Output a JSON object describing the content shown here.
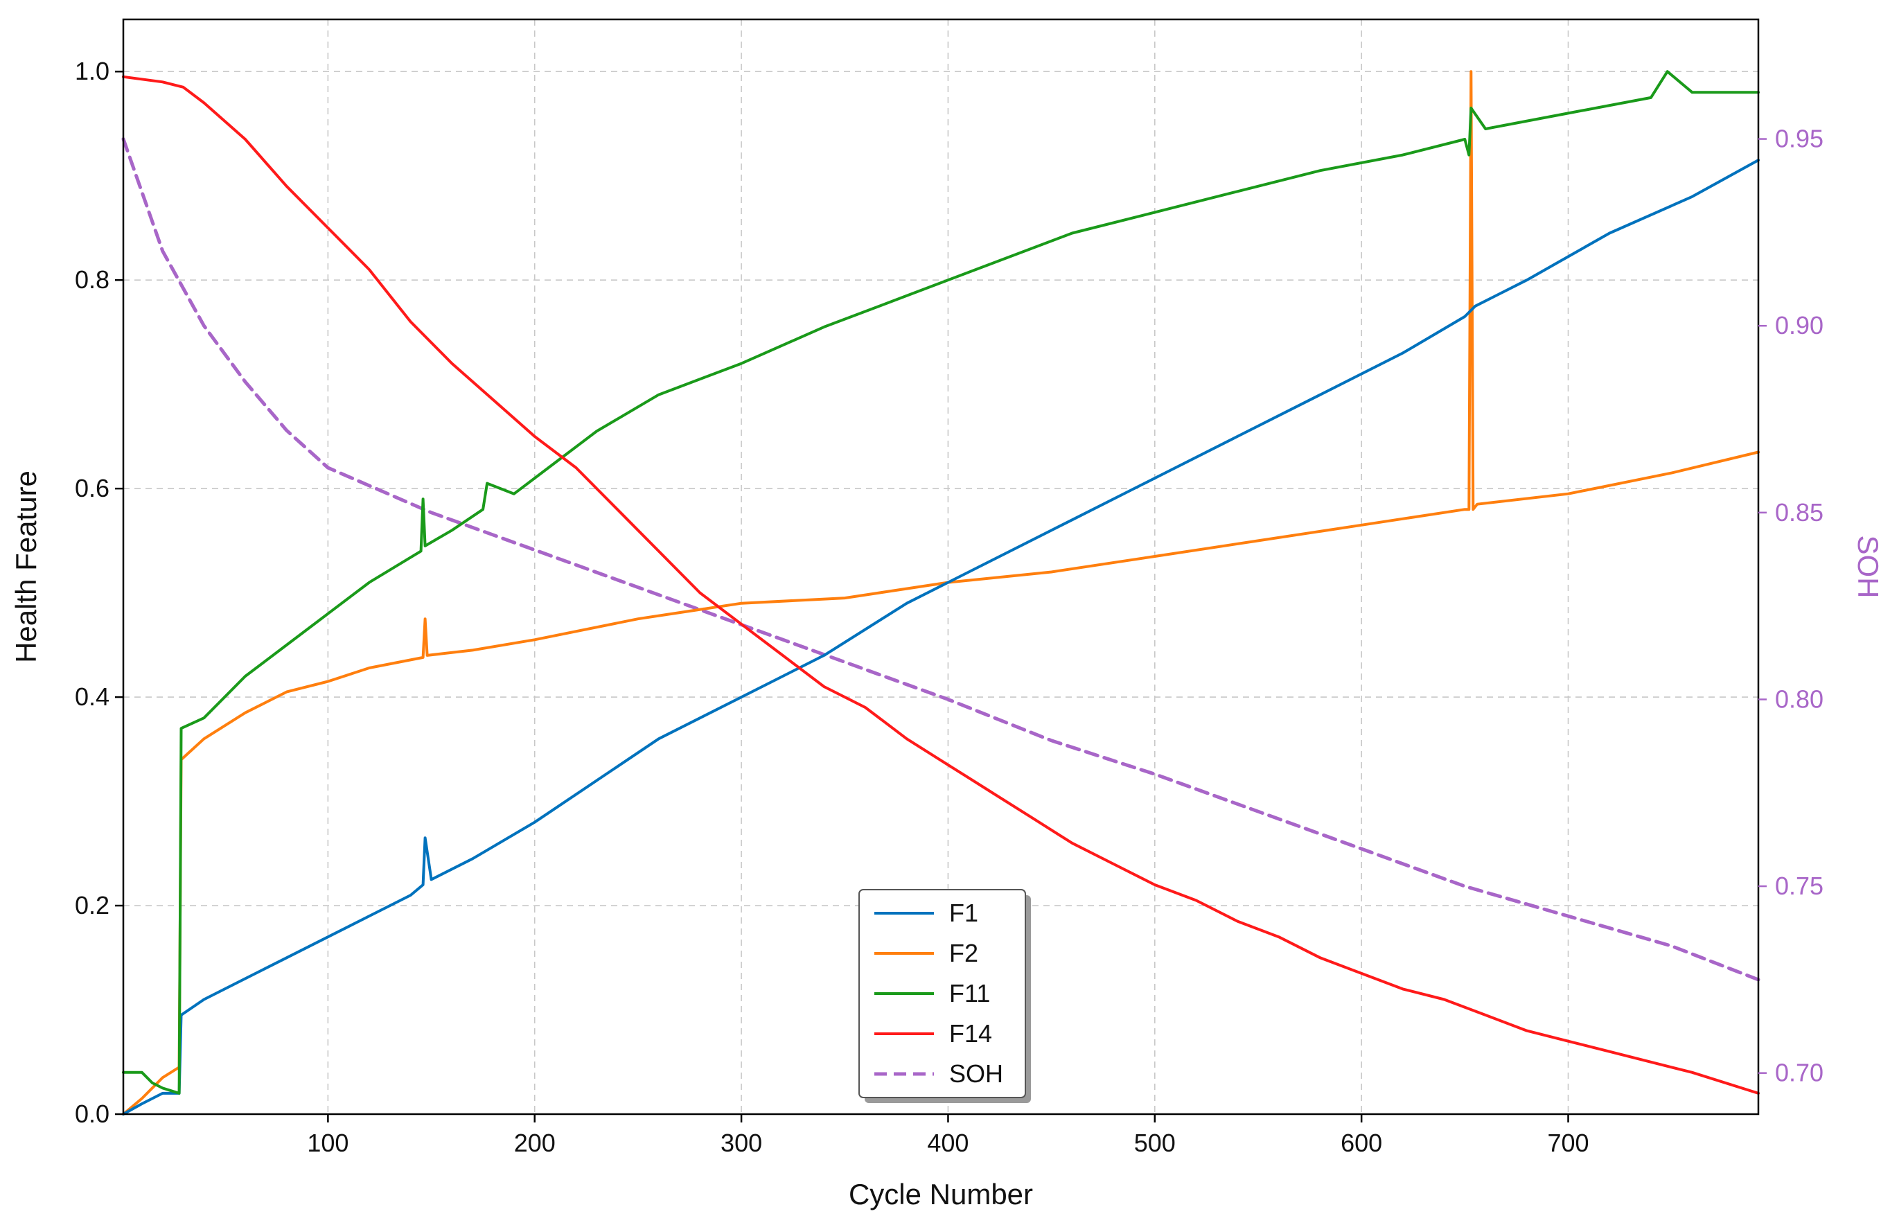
{
  "chart_data": {
    "type": "line",
    "title": "",
    "xlabel": "Cycle Number",
    "ylabel": "Health Feature",
    "y2label": "SOH",
    "xlim": [
      1,
      792
    ],
    "ylim": [
      0.0,
      1.05
    ],
    "y2lim": [
      0.689,
      0.982
    ],
    "xticks": [
      100,
      200,
      300,
      400,
      500,
      600,
      700
    ],
    "yticks": [
      0.0,
      0.2,
      0.4,
      0.6,
      0.8,
      1.0
    ],
    "y2ticks": [
      0.7,
      0.75,
      0.8,
      0.85,
      0.9,
      0.95
    ],
    "xtick_labels": [
      "100",
      "200",
      "300",
      "400",
      "500",
      "600",
      "700"
    ],
    "ytick_labels": [
      "0.0",
      "0.2",
      "0.4",
      "0.6",
      "0.8",
      "1.0"
    ],
    "y2tick_labels": [
      "0.70",
      "0.75",
      "0.80",
      "0.85",
      "0.90",
      "0.95"
    ],
    "grid": true,
    "legend_position": "bottom-center",
    "colors": {
      "F1": "#0072BD",
      "F2": "#FF7F0E",
      "F11": "#1A9A1A",
      "F14": "#FF1A1A",
      "SOH": "#A866C8",
      "axis_right": "#A866C8"
    },
    "series": [
      {
        "name": "F1",
        "axis": "left",
        "style": "solid",
        "x": [
          1,
          10,
          20,
          28,
          29,
          40,
          60,
          80,
          100,
          120,
          140,
          146,
          147,
          150,
          170,
          200,
          230,
          260,
          300,
          340,
          380,
          420,
          460,
          500,
          540,
          580,
          620,
          650,
          655,
          680,
          720,
          760,
          792
        ],
        "y": [
          0.0,
          0.01,
          0.02,
          0.02,
          0.095,
          0.11,
          0.13,
          0.15,
          0.17,
          0.19,
          0.21,
          0.22,
          0.265,
          0.225,
          0.245,
          0.28,
          0.32,
          0.36,
          0.4,
          0.44,
          0.49,
          0.53,
          0.57,
          0.61,
          0.65,
          0.69,
          0.73,
          0.765,
          0.775,
          0.8,
          0.845,
          0.88,
          0.915
        ]
      },
      {
        "name": "F2",
        "axis": "left",
        "style": "solid",
        "x": [
          1,
          10,
          20,
          28,
          29,
          40,
          60,
          80,
          100,
          120,
          146,
          147,
          148,
          170,
          200,
          250,
          300,
          350,
          400,
          450,
          500,
          550,
          600,
          650,
          652,
          653,
          654,
          656,
          700,
          750,
          792
        ],
        "y": [
          0.0,
          0.015,
          0.035,
          0.045,
          0.34,
          0.36,
          0.385,
          0.405,
          0.415,
          0.428,
          0.438,
          0.475,
          0.44,
          0.445,
          0.455,
          0.475,
          0.49,
          0.495,
          0.51,
          0.52,
          0.535,
          0.55,
          0.565,
          0.58,
          0.58,
          1.0,
          0.58,
          0.585,
          0.595,
          0.615,
          0.635
        ]
      },
      {
        "name": "F11",
        "axis": "left",
        "style": "solid",
        "x": [
          1,
          10,
          15,
          20,
          28,
          29,
          40,
          60,
          80,
          100,
          120,
          145,
          146,
          147,
          160,
          175,
          177,
          190,
          210,
          230,
          260,
          300,
          340,
          380,
          420,
          460,
          500,
          540,
          580,
          620,
          650,
          652,
          653,
          660,
          700,
          740,
          748,
          760,
          792
        ],
        "y": [
          0.04,
          0.04,
          0.03,
          0.025,
          0.02,
          0.37,
          0.38,
          0.42,
          0.45,
          0.48,
          0.51,
          0.54,
          0.59,
          0.545,
          0.56,
          0.58,
          0.605,
          0.595,
          0.625,
          0.655,
          0.69,
          0.72,
          0.755,
          0.785,
          0.815,
          0.845,
          0.865,
          0.885,
          0.905,
          0.92,
          0.935,
          0.92,
          0.965,
          0.945,
          0.96,
          0.975,
          1.0,
          0.98,
          0.98
        ]
      },
      {
        "name": "F14",
        "axis": "left",
        "style": "solid",
        "x": [
          1,
          20,
          30,
          40,
          60,
          80,
          100,
          120,
          140,
          160,
          180,
          200,
          220,
          240,
          260,
          280,
          300,
          320,
          340,
          360,
          380,
          400,
          420,
          440,
          460,
          480,
          500,
          520,
          540,
          560,
          580,
          600,
          620,
          640,
          660,
          680,
          700,
          720,
          740,
          760,
          792
        ],
        "y": [
          0.995,
          0.99,
          0.985,
          0.97,
          0.935,
          0.89,
          0.85,
          0.81,
          0.76,
          0.72,
          0.685,
          0.65,
          0.62,
          0.58,
          0.54,
          0.5,
          0.47,
          0.44,
          0.41,
          0.39,
          0.36,
          0.335,
          0.31,
          0.285,
          0.26,
          0.24,
          0.22,
          0.205,
          0.185,
          0.17,
          0.15,
          0.135,
          0.12,
          0.11,
          0.095,
          0.08,
          0.07,
          0.06,
          0.05,
          0.04,
          0.02
        ]
      },
      {
        "name": "SOH",
        "axis": "right",
        "style": "dashed",
        "x": [
          1,
          20,
          40,
          60,
          80,
          100,
          150,
          200,
          250,
          300,
          350,
          400,
          450,
          500,
          550,
          600,
          650,
          700,
          750,
          792
        ],
        "y": [
          0.95,
          0.92,
          0.9,
          0.885,
          0.872,
          0.862,
          0.85,
          0.84,
          0.83,
          0.82,
          0.81,
          0.8,
          0.789,
          0.78,
          0.77,
          0.76,
          0.75,
          0.742,
          0.734,
          0.725
        ]
      }
    ]
  }
}
